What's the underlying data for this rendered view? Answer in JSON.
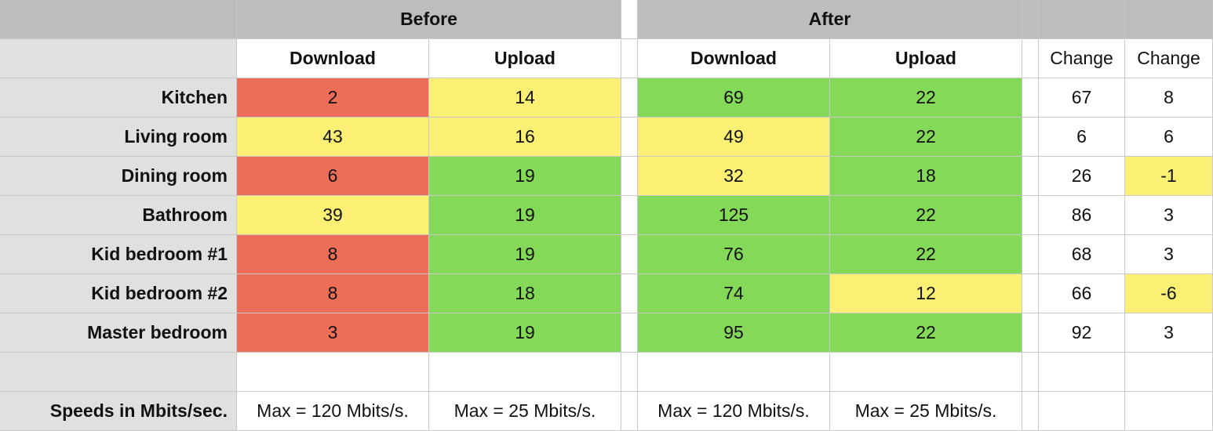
{
  "colors": {
    "red": "#ec6d58",
    "yellow": "#fbf074",
    "green": "#84d958",
    "white": "#ffffff",
    "header_gray": "#bdbdbd",
    "label_gray": "#e0e0e0"
  },
  "header": {
    "before": "Before",
    "after": "After"
  },
  "subheader": {
    "before_download": "Download",
    "before_upload": "Upload",
    "after_download": "Download",
    "after_upload": "Upload",
    "change_download": "Change",
    "change_upload": "Change"
  },
  "rows": [
    {
      "room": "Kitchen",
      "before_download": "2",
      "before_upload": "14",
      "after_download": "69",
      "after_upload": "22",
      "change_download": "67",
      "change_upload": "8",
      "fills": [
        "red",
        "yellow",
        "green",
        "green",
        "white",
        "white"
      ]
    },
    {
      "room": "Living room",
      "before_download": "43",
      "before_upload": "16",
      "after_download": "49",
      "after_upload": "22",
      "change_download": "6",
      "change_upload": "6",
      "fills": [
        "yellow",
        "yellow",
        "yellow",
        "green",
        "white",
        "white"
      ]
    },
    {
      "room": "Dining room",
      "before_download": "6",
      "before_upload": "19",
      "after_download": "32",
      "after_upload": "18",
      "change_download": "26",
      "change_upload": "-1",
      "fills": [
        "red",
        "green",
        "yellow",
        "green",
        "white",
        "yellow"
      ]
    },
    {
      "room": "Bathroom",
      "before_download": "39",
      "before_upload": "19",
      "after_download": "125",
      "after_upload": "22",
      "change_download": "86",
      "change_upload": "3",
      "fills": [
        "yellow",
        "green",
        "green",
        "green",
        "white",
        "white"
      ]
    },
    {
      "room": "Kid bedroom #1",
      "before_download": "8",
      "before_upload": "19",
      "after_download": "76",
      "after_upload": "22",
      "change_download": "68",
      "change_upload": "3",
      "fills": [
        "red",
        "green",
        "green",
        "green",
        "white",
        "white"
      ]
    },
    {
      "room": "Kid bedroom #2",
      "before_download": "8",
      "before_upload": "18",
      "after_download": "74",
      "after_upload": "12",
      "change_download": "66",
      "change_upload": "-6",
      "fills": [
        "red",
        "green",
        "green",
        "yellow",
        "white",
        "yellow"
      ]
    },
    {
      "room": "Master bedroom",
      "before_download": "3",
      "before_upload": "19",
      "after_download": "95",
      "after_upload": "22",
      "change_download": "92",
      "change_upload": "3",
      "fills": [
        "red",
        "green",
        "green",
        "green",
        "white",
        "white"
      ]
    }
  ],
  "footer": {
    "label": "Speeds in Mbits/sec.",
    "before_download_max": "Max = 120 Mbits/s.",
    "before_upload_max": "Max = 25 Mbits/s.",
    "after_download_max": "Max = 120 Mbits/s.",
    "after_upload_max": "Max = 25 Mbits/s."
  }
}
